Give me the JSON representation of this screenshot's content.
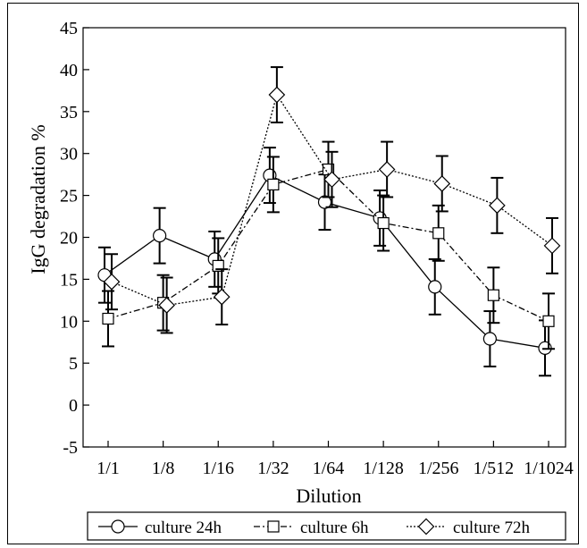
{
  "chart_data": {
    "type": "line",
    "xlabel": "Dilution",
    "ylabel": "IgG degradation %",
    "categories": [
      "1/1",
      "1/8",
      "1/16",
      "1/32",
      "1/64",
      "1/128",
      "1/256",
      "1/512",
      "1/1024"
    ],
    "ylim": [
      -5,
      45
    ],
    "yticks": [
      -5,
      0,
      5,
      10,
      15,
      20,
      25,
      30,
      35,
      40,
      45
    ],
    "grid": false,
    "legend_position": "bottom",
    "series": [
      {
        "name": "culture 24h",
        "marker": "circle",
        "line_style": "solid",
        "values": [
          15.5,
          20.2,
          17.4,
          27.4,
          24.2,
          22.3,
          14.1,
          7.9,
          6.8
        ],
        "error": [
          3.3,
          3.3,
          3.3,
          3.3,
          3.3,
          3.3,
          3.3,
          3.3,
          3.3
        ]
      },
      {
        "name": "culture 6h",
        "marker": "square",
        "line_style": "dashdot",
        "values": [
          10.3,
          12.2,
          16.6,
          26.3,
          28.1,
          21.7,
          20.5,
          13.1,
          10.0
        ],
        "error": [
          3.3,
          3.3,
          3.3,
          3.3,
          3.3,
          3.3,
          3.3,
          3.3,
          3.3
        ]
      },
      {
        "name": "culture 72h",
        "marker": "diamond",
        "line_style": "dotted",
        "values": [
          14.7,
          11.9,
          12.9,
          37.0,
          26.9,
          28.1,
          26.4,
          23.8,
          19.0
        ],
        "error": [
          3.3,
          3.3,
          3.3,
          3.3,
          3.3,
          3.3,
          3.3,
          3.3,
          3.3
        ]
      }
    ]
  }
}
